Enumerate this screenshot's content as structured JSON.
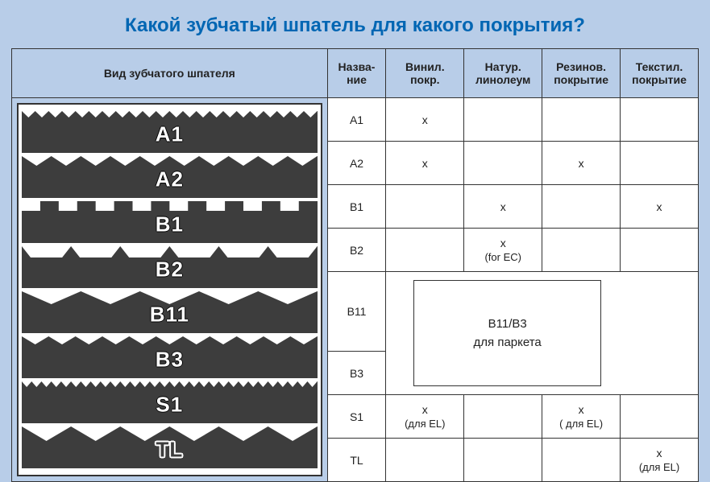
{
  "title": "Какой зубчатый шпатель для какого покрытия?",
  "headers": {
    "type": "Вид зубчатого шпателя",
    "name": "Назва-\nние",
    "vinyl": "Винил.\nпокр.",
    "linoleum": "Натур.\nлинолеум",
    "rubber": "Резинов.\nпокрытие",
    "textile": "Текстил.\nпокрытие"
  },
  "profiles": [
    "A1",
    "A2",
    "B1",
    "B2",
    "B11",
    "B3",
    "S1",
    "TL"
  ],
  "rows": [
    {
      "name": "A1",
      "vinyl": "x",
      "linoleum": "",
      "rubber": "",
      "textile": ""
    },
    {
      "name": "A2",
      "vinyl": "x",
      "linoleum": "",
      "rubber": "x",
      "textile": ""
    },
    {
      "name": "B1",
      "vinyl": "",
      "linoleum": "x",
      "rubber": "",
      "textile": "x"
    },
    {
      "name": "B2",
      "vinyl": "",
      "linoleum": "x",
      "linoleum_sub": "(for EC)",
      "rubber": "",
      "textile": ""
    },
    {
      "name": "B11",
      "merged": true
    },
    {
      "name": "B3",
      "merged": true
    },
    {
      "name": "S1",
      "vinyl": "x",
      "vinyl_sub": "(для EL)",
      "linoleum": "",
      "rubber": "x",
      "rubber_sub": "( для EL)",
      "textile": ""
    },
    {
      "name": "TL",
      "vinyl": "",
      "linoleum": "",
      "rubber": "",
      "textile": "x",
      "textile_sub": "(для EL)"
    }
  ],
  "merged_box": {
    "line1": "B11/B3",
    "line2": "для паркета"
  },
  "colors": {
    "page_bg": "#b8cde8",
    "cell_bg": "#ffffff",
    "profile_fill": "#3d3d3d",
    "border": "#333333",
    "title_color": "#0066b3"
  },
  "tooth_profiles": {
    "A1": {
      "type": "small-tri",
      "count": 22,
      "depth": 8
    },
    "A2": {
      "type": "tri",
      "count": 10,
      "depth": 12
    },
    "B1": {
      "type": "square",
      "count": 8,
      "depth": 12
    },
    "B2": {
      "type": "trap",
      "count": 6,
      "depth": 14
    },
    "B11": {
      "type": "v",
      "count": 5,
      "depth": 16
    },
    "B3": {
      "type": "wave-tri",
      "count": 11,
      "depth": 10
    },
    "S1": {
      "type": "fine-tri",
      "count": 30,
      "depth": 7
    },
    "TL": {
      "type": "big-v",
      "count": 6,
      "depth": 18
    }
  }
}
